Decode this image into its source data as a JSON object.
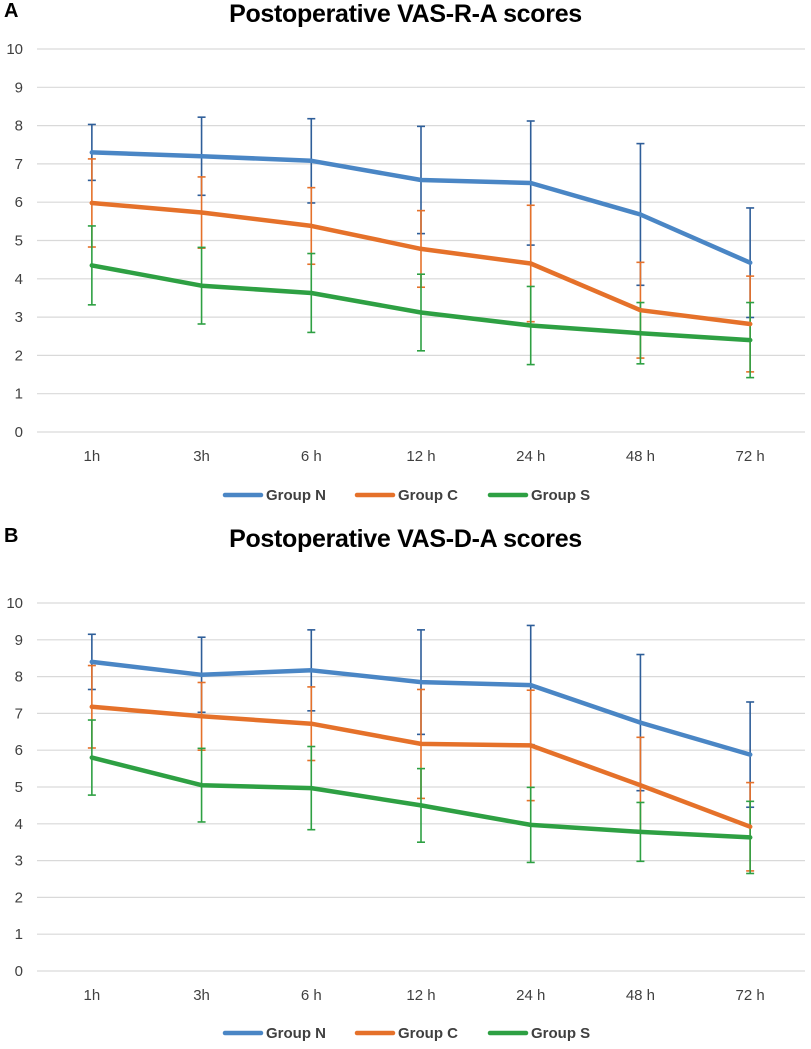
{
  "chart_data": [
    {
      "panel": "A",
      "type": "line",
      "title": "Postoperative VAS-R-A scores",
      "xlabel": "",
      "ylabel": "",
      "ylim": [
        0,
        10
      ],
      "yticks": [
        "0",
        "1",
        "2",
        "3",
        "4",
        "5",
        "6",
        "7",
        "8",
        "9",
        "10"
      ],
      "categories": [
        "1h",
        "3h",
        "6 h",
        "12 h",
        "24 h",
        "48 h",
        "72 h"
      ],
      "grid": true,
      "legend_position": "bottom",
      "series": [
        {
          "name": "Group N",
          "color": "#4a86c5",
          "errbar_color": "#2e5e99",
          "values": [
            7.3,
            7.2,
            7.08,
            6.58,
            6.5,
            5.68,
            4.42
          ],
          "errors": [
            0.73,
            1.02,
            1.1,
            1.4,
            1.62,
            1.85,
            1.43
          ]
        },
        {
          "name": "Group C",
          "color": "#e5712a",
          "errbar_color": "#e5712a",
          "values": [
            5.98,
            5.73,
            5.38,
            4.78,
            4.4,
            3.18,
            2.82
          ],
          "errors": [
            1.15,
            0.93,
            1.0,
            1.0,
            1.52,
            1.25,
            1.25
          ]
        },
        {
          "name": "Group S",
          "color": "#2ea043",
          "errbar_color": "#2ea043",
          "values": [
            4.35,
            3.82,
            3.63,
            3.12,
            2.78,
            2.58,
            2.4
          ],
          "errors": [
            1.03,
            1.0,
            1.03,
            1.0,
            1.02,
            0.8,
            0.98
          ]
        }
      ]
    },
    {
      "panel": "B",
      "type": "line",
      "title": "Postoperative VAS-D-A scores",
      "xlabel": "",
      "ylabel": "",
      "ylim": [
        0,
        10
      ],
      "yticks": [
        "0",
        "1",
        "2",
        "3",
        "4",
        "5",
        "6",
        "7",
        "8",
        "9",
        "10"
      ],
      "categories": [
        "1h",
        "3h",
        "6 h",
        "12 h",
        "24 h",
        "48 h",
        "72 h"
      ],
      "grid": true,
      "legend_position": "bottom",
      "series": [
        {
          "name": "Group N",
          "color": "#4a86c5",
          "errbar_color": "#2e5e99",
          "values": [
            8.4,
            8.05,
            8.17,
            7.85,
            7.77,
            6.75,
            5.88
          ],
          "errors": [
            0.75,
            1.02,
            1.1,
            1.42,
            1.62,
            1.85,
            1.43
          ]
        },
        {
          "name": "Group C",
          "color": "#e5712a",
          "errbar_color": "#e5712a",
          "values": [
            7.18,
            6.92,
            6.72,
            6.17,
            6.13,
            5.05,
            3.92
          ],
          "errors": [
            1.12,
            0.92,
            1.0,
            1.48,
            1.5,
            1.3,
            1.2
          ]
        },
        {
          "name": "Group S",
          "color": "#2ea043",
          "errbar_color": "#2ea043",
          "values": [
            5.8,
            5.05,
            4.97,
            4.5,
            3.97,
            3.78,
            3.63
          ],
          "errors": [
            1.02,
            1.0,
            1.13,
            1.0,
            1.02,
            0.8,
            0.98
          ]
        }
      ]
    }
  ],
  "panels": {
    "a": {
      "letter": "A"
    },
    "b": {
      "letter": "B"
    }
  }
}
